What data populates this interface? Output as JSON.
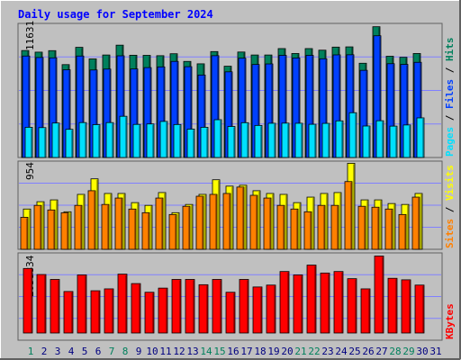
{
  "chart_data": [
    {
      "type": "bar",
      "title": "Daily usage for September 2024",
      "ymax_label": "11631",
      "ylim": [
        0,
        11631
      ],
      "grid": true,
      "categories": [
        "1",
        "2",
        "3",
        "4",
        "5",
        "6",
        "7",
        "8",
        "9",
        "10",
        "11",
        "12",
        "13",
        "14",
        "15",
        "16",
        "17",
        "18",
        "19",
        "20",
        "21",
        "22",
        "23",
        "24",
        "25",
        "26",
        "27",
        "28",
        "29",
        "30",
        "31"
      ],
      "series": [
        {
          "name": "Hits",
          "color": "#00805c",
          "values": [
            9340,
            9200,
            9330,
            8110,
            9620,
            8610,
            8950,
            9810,
            8930,
            8920,
            8890,
            9060,
            8390,
            8180,
            9250,
            7970,
            9210,
            8950,
            8950,
            9510,
            9080,
            9510,
            9370,
            9640,
            9660,
            8230,
            11420,
            8840,
            8750,
            9080,
            0
          ]
        },
        {
          "name": "Files",
          "color": "#0040ff",
          "values": [
            8860,
            8730,
            8700,
            7660,
            8860,
            7640,
            7720,
            8880,
            7730,
            7850,
            7910,
            8390,
            7930,
            7200,
            8890,
            7480,
            8670,
            8120,
            8170,
            8920,
            8690,
            8920,
            8620,
            8960,
            8970,
            7610,
            10630,
            8190,
            8130,
            8310,
            0
          ]
        },
        {
          "name": "Pages",
          "color": "#00e0ff",
          "values": [
            2640,
            2610,
            3010,
            2460,
            3050,
            2870,
            3050,
            3600,
            2890,
            2930,
            3150,
            2880,
            2480,
            2640,
            3300,
            2710,
            3040,
            2800,
            2990,
            3000,
            2990,
            2900,
            2980,
            3200,
            3910,
            2750,
            3210,
            2740,
            2840,
            3460,
            0
          ]
        }
      ]
    },
    {
      "type": "bar",
      "ymax_label": "954",
      "ylim": [
        0,
        954
      ],
      "grid": true,
      "categories": [
        "1",
        "2",
        "3",
        "4",
        "5",
        "6",
        "7",
        "8",
        "9",
        "10",
        "11",
        "12",
        "13",
        "14",
        "15",
        "16",
        "17",
        "18",
        "19",
        "20",
        "21",
        "22",
        "23",
        "24",
        "25",
        "26",
        "27",
        "28",
        "29",
        "30",
        "31"
      ],
      "series": [
        {
          "name": "Visits",
          "color": "#ffff00",
          "values": [
            440,
            520,
            540,
            410,
            600,
            770,
            610,
            610,
            510,
            480,
            620,
            400,
            490,
            600,
            760,
            690,
            700,
            640,
            610,
            600,
            510,
            570,
            610,
            620,
            940,
            540,
            540,
            500,
            490,
            610,
            0
          ]
        },
        {
          "name": "Sites",
          "color": "#ff8000",
          "values": [
            350,
            480,
            430,
            400,
            480,
            640,
            490,
            560,
            440,
            400,
            560,
            380,
            470,
            580,
            600,
            610,
            680,
            590,
            560,
            480,
            440,
            410,
            480,
            480,
            740,
            470,
            460,
            440,
            380,
            570,
            0
          ]
        }
      ]
    },
    {
      "type": "bar",
      "ymax_label": "2051834",
      "ylim": [
        0,
        2051834
      ],
      "grid": true,
      "categories": [
        "1",
        "2",
        "3",
        "4",
        "5",
        "6",
        "7",
        "8",
        "9",
        "10",
        "11",
        "12",
        "13",
        "14",
        "15",
        "16",
        "17",
        "18",
        "19",
        "20",
        "21",
        "22",
        "23",
        "24",
        "25",
        "26",
        "27",
        "28",
        "29",
        "30",
        "31"
      ],
      "series": [
        {
          "name": "KBytes",
          "color": "#ff0000",
          "values": [
            1710000,
            1550000,
            1420000,
            1100000,
            1540000,
            1120000,
            1170000,
            1560000,
            1310000,
            1080000,
            1190000,
            1420000,
            1420000,
            1280000,
            1420000,
            1080000,
            1420000,
            1220000,
            1270000,
            1630000,
            1540000,
            1800000,
            1590000,
            1630000,
            1440000,
            1170000,
            2040000,
            1450000,
            1410000,
            1270000,
            0
          ]
        }
      ]
    }
  ],
  "legend_separator": " / ",
  "colors": {
    "background": "#c0c0c0",
    "grid": "#8080ff",
    "title": "#0000ff",
    "weekday_label": "#000080",
    "weekend_label": "#00805c",
    "bar_outline": "#000000"
  },
  "weekend_days": [
    1,
    7,
    8,
    14,
    15,
    21,
    22,
    28,
    29
  ]
}
